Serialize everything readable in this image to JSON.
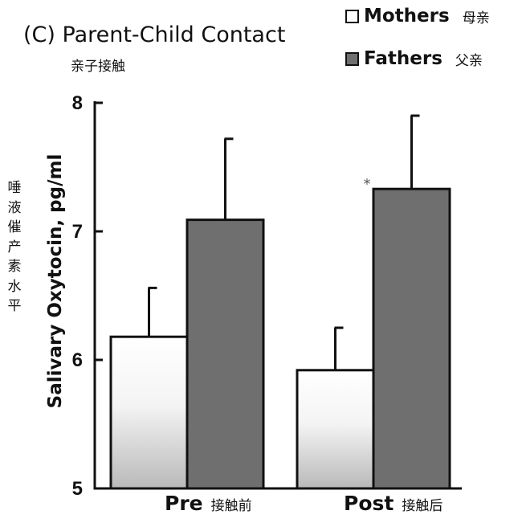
{
  "chart_data": {
    "type": "bar",
    "title": "(C) Parent-Child Contact",
    "title_cn": "亲子接触",
    "ylabel": "Salivary Oxytocin, pg/ml",
    "ylabel_cn": "唾液催产素水平",
    "ylim": [
      5,
      8
    ],
    "yticks": [
      "5",
      "6",
      "7",
      "8"
    ],
    "categories": [
      "Pre",
      "Post"
    ],
    "categories_cn": [
      "接触前",
      "接触后"
    ],
    "series": [
      {
        "name": "Mothers",
        "name_cn": "母亲",
        "values": [
          6.18,
          5.92
        ],
        "error": [
          0.38,
          0.33
        ],
        "color": "#ffffff"
      },
      {
        "name": "Fathers",
        "name_cn": "父亲",
        "values": [
          7.09,
          7.33
        ],
        "error": [
          0.63,
          0.57
        ],
        "color": "#6f6f6f"
      }
    ],
    "annotations": [
      {
        "text": "*",
        "category": "Post",
        "series": "Fathers"
      }
    ],
    "legend_position": "top-right",
    "grid": false
  }
}
